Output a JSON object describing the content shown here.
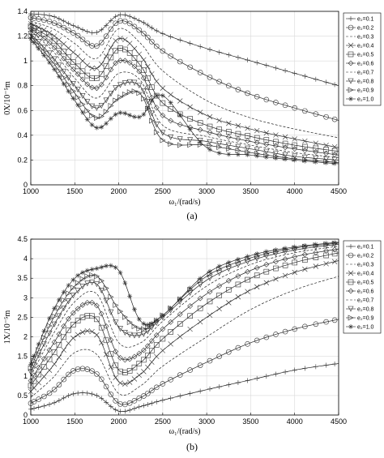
{
  "chart_data": [
    {
      "type": "line",
      "panel_label": "(a)",
      "ylabel": "0X/10⁻⁵m",
      "xlabel": "ω₁/(rad/s)",
      "xlim": [
        1000,
        4500
      ],
      "ylim": [
        0,
        1.4
      ],
      "xticks": [
        "1000",
        "1500",
        "2000",
        "2500",
        "3000",
        "3500",
        "4000",
        "4500"
      ],
      "yticks": [
        "0",
        "0.2",
        "0.4",
        "0.6",
        "0.8",
        "1",
        "1.2",
        "1.4"
      ],
      "grid": true,
      "legend_position": "right",
      "x": [
        1000,
        1250,
        1500,
        1750,
        2000,
        2250,
        2500,
        3000,
        3500,
        4000,
        4500
      ],
      "series": [
        {
          "name": "e₂=0.1",
          "marker": "plus",
          "values": [
            1.38,
            1.36,
            1.28,
            1.23,
            1.37,
            1.32,
            1.22,
            1.1,
            1.0,
            0.9,
            0.8
          ]
        },
        {
          "name": "e₂=0.2",
          "marker": "circle",
          "values": [
            1.35,
            1.31,
            1.22,
            1.12,
            1.32,
            1.24,
            1.08,
            0.88,
            0.73,
            0.62,
            0.52
          ]
        },
        {
          "name": "e₂=0.3",
          "marker": "none",
          "values": [
            1.32,
            1.26,
            1.14,
            1.02,
            1.26,
            1.14,
            0.92,
            0.68,
            0.54,
            0.45,
            0.38
          ]
        },
        {
          "name": "e₂=0.4",
          "marker": "x",
          "values": [
            1.3,
            1.21,
            1.06,
            0.94,
            1.18,
            1.04,
            0.78,
            0.56,
            0.45,
            0.37,
            0.3
          ]
        },
        {
          "name": "e₂=0.5",
          "marker": "square",
          "values": [
            1.28,
            1.17,
            0.98,
            0.86,
            1.1,
            0.96,
            0.66,
            0.48,
            0.39,
            0.32,
            0.27
          ]
        },
        {
          "name": "e₂=0.6",
          "marker": "diamond",
          "values": [
            1.26,
            1.12,
            0.92,
            0.78,
            1.0,
            0.9,
            0.56,
            0.43,
            0.35,
            0.29,
            0.24
          ]
        },
        {
          "name": "e₂=0.7",
          "marker": "none",
          "values": [
            1.24,
            1.08,
            0.86,
            0.7,
            0.9,
            0.84,
            0.48,
            0.39,
            0.32,
            0.26,
            0.22
          ]
        },
        {
          "name": "e₂=0.8",
          "marker": "triangle",
          "values": [
            1.22,
            1.03,
            0.8,
            0.62,
            0.8,
            0.79,
            0.42,
            0.35,
            0.29,
            0.23,
            0.2
          ]
        },
        {
          "name": "e₂=0.9",
          "marker": "tri-right",
          "values": [
            1.2,
            0.99,
            0.74,
            0.54,
            0.7,
            0.73,
            0.36,
            0.32,
            0.26,
            0.21,
            0.18
          ]
        },
        {
          "name": "e₂=1.0",
          "marker": "star",
          "values": [
            1.18,
            0.95,
            0.68,
            0.46,
            0.58,
            0.55,
            0.72,
            0.3,
            0.24,
            0.2,
            0.17
          ]
        }
      ]
    },
    {
      "type": "line",
      "panel_label": "(b)",
      "ylabel": "1X/10⁻⁵m",
      "xlabel": "ω₁/(rad/s)",
      "xlim": [
        1000,
        4500
      ],
      "ylim": [
        0,
        4.5
      ],
      "xticks": [
        "1000",
        "1500",
        "2000",
        "2500",
        "3000",
        "3500",
        "4000",
        "4500"
      ],
      "yticks": [
        "0",
        "0.5",
        "1",
        "1.5",
        "2",
        "2.5",
        "3",
        "3.5",
        "4",
        "4.5"
      ],
      "grid": true,
      "legend_position": "right",
      "x": [
        1000,
        1250,
        1500,
        1750,
        2000,
        2250,
        2500,
        3000,
        3500,
        4000,
        4500
      ],
      "series": [
        {
          "name": "e₂=0.1",
          "marker": "plus",
          "values": [
            0.15,
            0.3,
            0.55,
            0.5,
            0.1,
            0.22,
            0.38,
            0.65,
            0.9,
            1.15,
            1.32
          ]
        },
        {
          "name": "e₂=0.2",
          "marker": "circle",
          "values": [
            0.3,
            0.62,
            1.15,
            1.05,
            0.3,
            0.45,
            0.8,
            1.35,
            1.85,
            2.2,
            2.45
          ]
        },
        {
          "name": "e₂=0.3",
          "marker": "none",
          "values": [
            0.45,
            0.95,
            1.6,
            1.55,
            0.55,
            0.75,
            1.25,
            2.0,
            2.7,
            3.2,
            3.55
          ]
        },
        {
          "name": "e₂=0.4",
          "marker": "x",
          "values": [
            0.6,
            1.25,
            2.0,
            2.05,
            0.85,
            1.05,
            1.65,
            2.5,
            3.2,
            3.65,
            3.95
          ]
        },
        {
          "name": "e₂=0.5",
          "marker": "square",
          "values": [
            0.75,
            1.55,
            2.35,
            2.45,
            1.15,
            1.35,
            1.95,
            2.85,
            3.5,
            3.9,
            4.15
          ]
        },
        {
          "name": "e₂=0.6",
          "marker": "diamond",
          "values": [
            0.88,
            1.8,
            2.65,
            2.8,
            1.5,
            1.6,
            2.2,
            3.1,
            3.7,
            4.05,
            4.25
          ]
        },
        {
          "name": "e₂=0.7",
          "marker": "none",
          "values": [
            1.0,
            2.05,
            2.9,
            3.1,
            1.85,
            1.85,
            2.4,
            3.3,
            3.85,
            4.15,
            4.32
          ]
        },
        {
          "name": "e₂=0.8",
          "marker": "triangle",
          "values": [
            1.1,
            2.25,
            3.1,
            3.35,
            2.25,
            2.05,
            2.5,
            3.45,
            3.95,
            4.22,
            4.37
          ]
        },
        {
          "name": "e₂=0.9",
          "marker": "tri-right",
          "values": [
            1.2,
            2.45,
            3.3,
            3.55,
            2.7,
            2.2,
            2.55,
            3.55,
            4.02,
            4.27,
            4.4
          ]
        },
        {
          "name": "e₂=1.0",
          "marker": "star",
          "values": [
            1.3,
            2.65,
            3.5,
            3.75,
            3.7,
            2.4,
            2.55,
            3.62,
            4.08,
            4.3,
            4.42
          ]
        }
      ]
    }
  ]
}
